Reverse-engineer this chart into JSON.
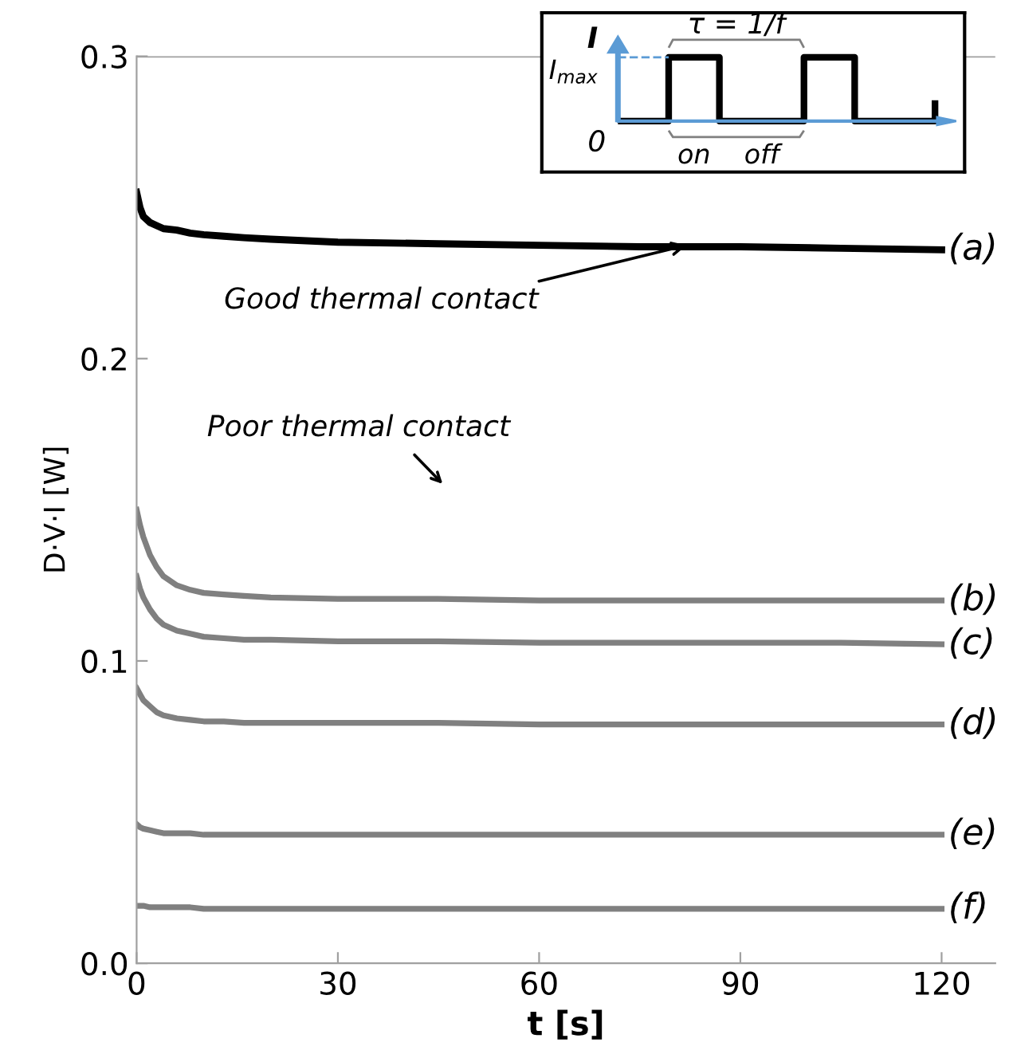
{
  "chart_data": {
    "type": "line",
    "xlabel": "t [s]",
    "ylabel": "D·V·I [W]",
    "x": [
      0,
      0.5,
      1,
      2,
      3,
      4,
      6,
      8,
      10,
      13,
      16,
      20,
      30,
      45,
      60,
      75,
      90,
      105,
      120
    ],
    "series": [
      {
        "name": "(a)",
        "color": "#000000",
        "values": [
          0.255,
          0.25,
          0.247,
          0.245,
          0.244,
          0.243,
          0.2425,
          0.2415,
          0.241,
          0.2405,
          0.24,
          0.2395,
          0.2385,
          0.238,
          0.2375,
          0.237,
          0.237,
          0.2365,
          0.236
        ]
      },
      {
        "name": "(b)",
        "color": "#808080",
        "values": [
          0.15,
          0.145,
          0.141,
          0.135,
          0.131,
          0.128,
          0.125,
          0.1235,
          0.1225,
          0.122,
          0.1215,
          0.121,
          0.1205,
          0.1205,
          0.12,
          0.12,
          0.12,
          0.12,
          0.12
        ]
      },
      {
        "name": "(c)",
        "color": "#808080",
        "values": [
          0.128,
          0.124,
          0.121,
          0.117,
          0.114,
          0.112,
          0.11,
          0.109,
          0.108,
          0.1075,
          0.107,
          0.107,
          0.1065,
          0.1065,
          0.106,
          0.106,
          0.106,
          0.106,
          0.1055
        ]
      },
      {
        "name": "(d)",
        "color": "#808080",
        "values": [
          0.091,
          0.089,
          0.087,
          0.085,
          0.083,
          0.082,
          0.081,
          0.0805,
          0.08,
          0.08,
          0.0795,
          0.0795,
          0.0795,
          0.0795,
          0.079,
          0.079,
          0.079,
          0.079,
          0.079
        ]
      },
      {
        "name": "(e)",
        "color": "#808080",
        "values": [
          0.046,
          0.045,
          0.0445,
          0.044,
          0.0435,
          0.043,
          0.043,
          0.043,
          0.0425,
          0.0425,
          0.0425,
          0.0425,
          0.0425,
          0.0425,
          0.0425,
          0.0425,
          0.0425,
          0.0425,
          0.0425
        ]
      },
      {
        "name": "(f)",
        "color": "#808080",
        "values": [
          0.019,
          0.019,
          0.019,
          0.0185,
          0.0185,
          0.0185,
          0.0185,
          0.0185,
          0.018,
          0.018,
          0.018,
          0.018,
          0.018,
          0.018,
          0.018,
          0.018,
          0.018,
          0.018,
          0.018
        ]
      }
    ],
    "xlim": [
      0,
      128
    ],
    "xticks": [
      0,
      30,
      60,
      90,
      120
    ],
    "ylim": [
      0,
      0.3
    ],
    "yticks": [
      {
        "value": 0,
        "label": "0.0"
      },
      {
        "value": 0.1,
        "label": "0.1"
      },
      {
        "value": 0.2,
        "label": "0.2"
      },
      {
        "value": 0.3,
        "label": "0.3"
      }
    ],
    "ref_lines": [
      {
        "axis": "y",
        "value": 0.3,
        "color": "#a0a0a0"
      }
    ],
    "grid": false,
    "legend": false,
    "marker": "none",
    "line_style": "solid",
    "annotations": [
      {
        "text": "Good thermal contact",
        "x": 82,
        "y": 0.2375
      },
      "Poor thermal contact",
      "I",
      "I$_{max}$",
      "τ = 1/f",
      "0",
      "on",
      "off"
    ]
  }
}
